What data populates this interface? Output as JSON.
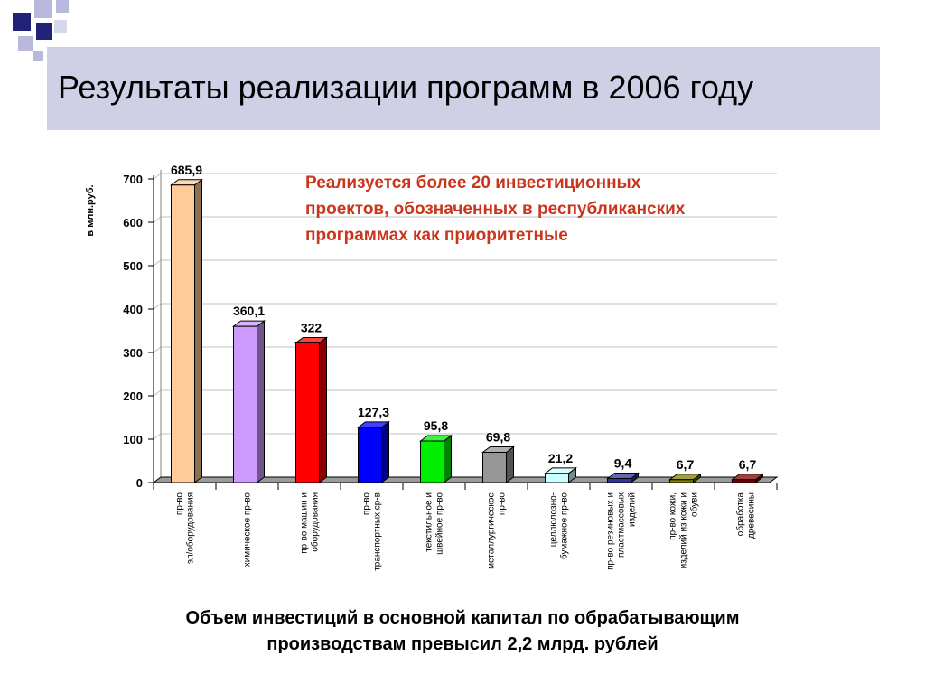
{
  "slide": {
    "title": "Результаты реализации программ в 2006 году",
    "note_lines": [
      "Реализуется более 20 инвестиционных",
      "проектов, обозначенных в республиканских",
      "программах как приоритетные"
    ],
    "caption_lines": [
      "Объем инвестиций в основной капитал по обрабатывающим",
      "производствам превысил 2,2 млрд. рублей"
    ],
    "colors": {
      "title_band": "#cfcfe6",
      "deco_dark": "#22227a",
      "deco_light": "#b9b9dd",
      "note_text": "#c8371d"
    }
  },
  "chart_data": {
    "type": "bar",
    "ylabel": "в млн.руб.",
    "ylim": [
      0,
      700
    ],
    "yticks": [
      "0",
      "100",
      "200",
      "300",
      "400",
      "500",
      "600",
      "700"
    ],
    "grid": true,
    "categories": [
      [
        "пр-во",
        "эл/оборудования"
      ],
      [
        "химическое пр-во"
      ],
      [
        "пр-во машин и",
        "оборудования"
      ],
      [
        "пр-во",
        "транспортных ср-в"
      ],
      [
        "текстильное и",
        "швейное пр-во"
      ],
      [
        "металлургическое",
        "пр-во"
      ],
      [
        "целлюлозно-",
        "бумажное пр-во"
      ],
      [
        "пр-во резиновых и",
        "пластмассовых",
        "изделий"
      ],
      [
        "пр-во кожи,",
        "изделий из кожи и",
        "обуви"
      ],
      [
        "обработка",
        "древесины"
      ]
    ],
    "values": [
      685.9,
      360.1,
      322,
      127.3,
      95.8,
      69.8,
      21.2,
      9.4,
      6.7,
      6.7
    ],
    "value_labels": [
      "685,9",
      "360,1",
      "322",
      "127,3",
      "95,8",
      "69,8",
      "21,2",
      "9,4",
      "6,7",
      "6,7"
    ],
    "bar_colors": [
      "#ffcc99",
      "#cc99ff",
      "#ff0000",
      "#0000ff",
      "#00ee00",
      "#969696",
      "#ccffff",
      "#333399",
      "#808000",
      "#800000"
    ]
  }
}
